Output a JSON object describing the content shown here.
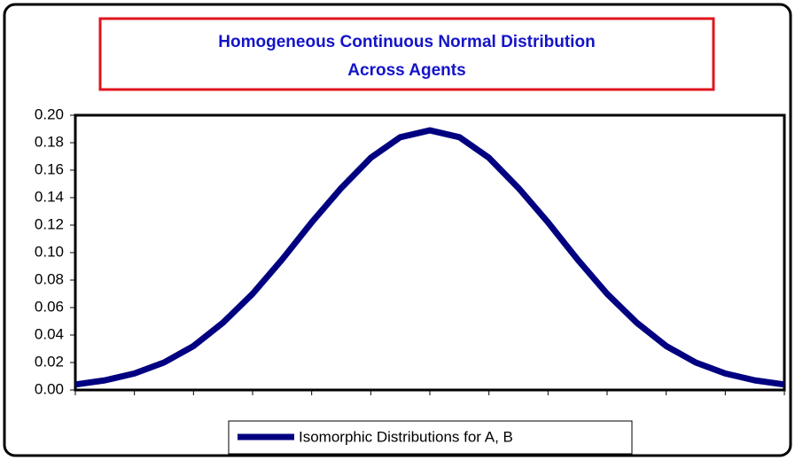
{
  "chart_data": {
    "type": "line",
    "title": "Homogeneous Continuous Normal Distribution",
    "subtitle": "Across Agents",
    "categories": [
      null,
      null,
      null,
      null,
      null,
      null,
      null,
      null,
      null,
      null,
      null,
      null,
      null,
      null,
      null,
      null,
      null,
      null,
      null,
      null,
      null,
      null,
      null,
      null,
      null
    ],
    "series": [
      {
        "name": "Isomorphic Distributions for A, B",
        "color": "#000080",
        "values": [
          0.004,
          0.007,
          0.012,
          0.02,
          0.032,
          0.049,
          0.07,
          0.095,
          0.122,
          0.147,
          0.169,
          0.184,
          0.189,
          0.184,
          0.169,
          0.147,
          0.122,
          0.095,
          0.07,
          0.049,
          0.032,
          0.02,
          0.012,
          0.007,
          0.004
        ]
      }
    ],
    "ylim": [
      0,
      0.2
    ],
    "yticks": [
      {
        "value": 0,
        "label": "0.00"
      },
      {
        "value": 0.02,
        "label": "0.02"
      },
      {
        "value": 0.04,
        "label": "0.04"
      },
      {
        "value": 0.06,
        "label": "0.06"
      },
      {
        "value": 0.08,
        "label": "0.08"
      },
      {
        "value": 0.1,
        "label": "0.10"
      },
      {
        "value": 0.12,
        "label": "0.12"
      },
      {
        "value": 0.14,
        "label": "0.14"
      },
      {
        "value": 0.16,
        "label": "0.16"
      },
      {
        "value": 0.18,
        "label": "0.18"
      },
      {
        "value": 0.2,
        "label": "0.20"
      }
    ],
    "grid": false
  }
}
